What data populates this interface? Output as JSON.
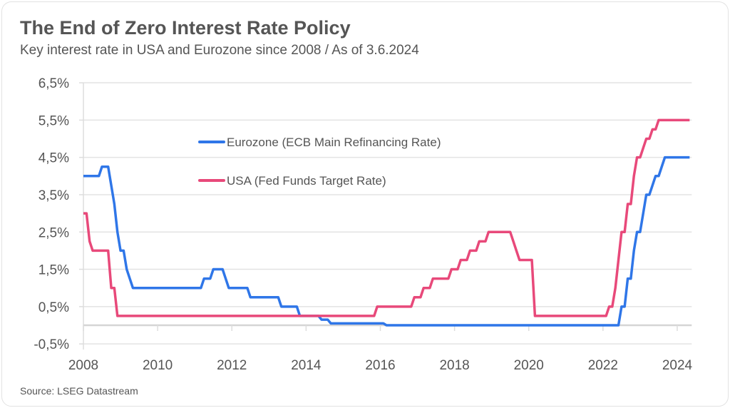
{
  "title": "The End of Zero Interest Rate Policy",
  "subtitle": "Key interest rate in USA and Eurozone since 2008 / As of 3.6.2024",
  "source": "Source: LSEG Datastream",
  "chart_data": {
    "type": "line",
    "title": "The End of Zero Interest Rate Policy",
    "subtitle": "Key interest rate in USA and Eurozone since 2008 / As of 3.6.2024",
    "xlabel": "",
    "ylabel": "",
    "xlim": [
      "2008-01",
      "2024-05"
    ],
    "ylim": [
      -0.5,
      6.5
    ],
    "y_ticks": [
      "6,5%",
      "5,5%",
      "4,5%",
      "3,5%",
      "2,5%",
      "1,5%",
      "0,5%",
      "-0,5%"
    ],
    "y_tick_values": [
      6.5,
      5.5,
      4.5,
      3.5,
      2.5,
      1.5,
      0.5,
      -0.5
    ],
    "x_ticks": [
      "2008",
      "2010",
      "2012",
      "2014",
      "2016",
      "2018",
      "2020",
      "2022",
      "2024"
    ],
    "grid": "horizontal",
    "legend_placement": "top-center",
    "step": true,
    "series": [
      {
        "name": "Eurozone (ECB Main Refinancing Rate)",
        "color": "#2f76e8",
        "points": [
          [
            "2008-01",
            4.0
          ],
          [
            "2008-07",
            4.25
          ],
          [
            "2008-10",
            3.75
          ],
          [
            "2008-11",
            3.25
          ],
          [
            "2008-12",
            2.5
          ],
          [
            "2009-01",
            2.0
          ],
          [
            "2009-03",
            1.5
          ],
          [
            "2009-04",
            1.25
          ],
          [
            "2009-05",
            1.0
          ],
          [
            "2011-04",
            1.25
          ],
          [
            "2011-07",
            1.5
          ],
          [
            "2011-11",
            1.25
          ],
          [
            "2011-12",
            1.0
          ],
          [
            "2012-07",
            0.75
          ],
          [
            "2013-05",
            0.5
          ],
          [
            "2013-11",
            0.25
          ],
          [
            "2014-06",
            0.15
          ],
          [
            "2014-09",
            0.05
          ],
          [
            "2016-03",
            0.0
          ],
          [
            "2022-07",
            0.5
          ],
          [
            "2022-09",
            1.25
          ],
          [
            "2022-11",
            2.0
          ],
          [
            "2022-12",
            2.5
          ],
          [
            "2023-02",
            3.0
          ],
          [
            "2023-03",
            3.5
          ],
          [
            "2023-05",
            3.75
          ],
          [
            "2023-06",
            4.0
          ],
          [
            "2023-08",
            4.25
          ],
          [
            "2023-09",
            4.5
          ],
          [
            "2024-05",
            4.5
          ]
        ]
      },
      {
        "name": "USA (Fed Funds Target Rate)",
        "color": "#e8497a",
        "points": [
          [
            "2008-01",
            3.0
          ],
          [
            "2008-03",
            2.25
          ],
          [
            "2008-04",
            2.0
          ],
          [
            "2008-10",
            1.0
          ],
          [
            "2008-12",
            0.25
          ],
          [
            "2015-12",
            0.5
          ],
          [
            "2016-12",
            0.75
          ],
          [
            "2017-03",
            1.0
          ],
          [
            "2017-06",
            1.25
          ],
          [
            "2017-12",
            1.5
          ],
          [
            "2018-03",
            1.75
          ],
          [
            "2018-06",
            2.0
          ],
          [
            "2018-09",
            2.25
          ],
          [
            "2018-12",
            2.5
          ],
          [
            "2019-08",
            2.25
          ],
          [
            "2019-09",
            2.0
          ],
          [
            "2019-10",
            1.75
          ],
          [
            "2020-03",
            0.25
          ],
          [
            "2022-03",
            0.5
          ],
          [
            "2022-05",
            1.0
          ],
          [
            "2022-06",
            1.75
          ],
          [
            "2022-07",
            2.5
          ],
          [
            "2022-09",
            3.25
          ],
          [
            "2022-11",
            4.0
          ],
          [
            "2022-12",
            4.5
          ],
          [
            "2023-02",
            4.75
          ],
          [
            "2023-03",
            5.0
          ],
          [
            "2023-05",
            5.25
          ],
          [
            "2023-07",
            5.5
          ],
          [
            "2024-05",
            5.5
          ]
        ]
      }
    ]
  }
}
